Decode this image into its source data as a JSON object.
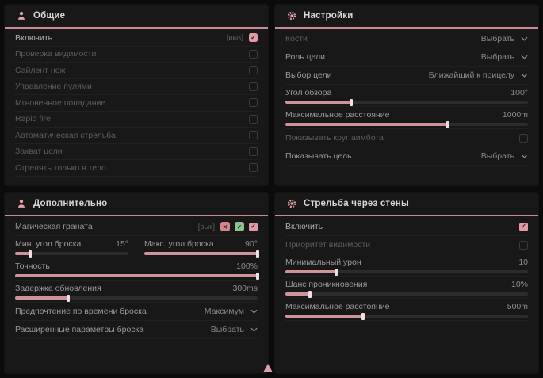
{
  "colors": {
    "accent_underline": "#c98a93",
    "checkbox_on": "#e29aa4",
    "slider_fill": "#cf939b",
    "header_icon": "#e8a2ab",
    "badge_red": "#d9838c",
    "badge_green": "#8fc08f",
    "panel_bg": "#181818",
    "page_bg": "#0b0b0b"
  },
  "panels": [
    {
      "title": "Общие",
      "icon": "person-icon",
      "rows": [
        {
          "type": "toggle",
          "label": "Включить",
          "hotkey": "[вык]",
          "checked": true
        },
        {
          "type": "toggle",
          "label": "Проверка видимости",
          "checked": false
        },
        {
          "type": "toggle",
          "label": "Сайлент нож",
          "checked": false
        },
        {
          "type": "toggle",
          "label": "Управление пулями",
          "checked": false
        },
        {
          "type": "toggle",
          "label": "Мгновенное попадание",
          "checked": false
        },
        {
          "type": "toggle",
          "label": "Rapid fire",
          "checked": false
        },
        {
          "type": "toggle",
          "label": "Автоматическая стрельба",
          "checked": false
        },
        {
          "type": "toggle",
          "label": "Захват цели",
          "checked": false
        },
        {
          "type": "toggle",
          "label": "Стрелять только в тело",
          "checked": false
        }
      ]
    },
    {
      "title": "Настройки",
      "icon": "gear-icon",
      "rows": [
        {
          "type": "select",
          "label": "Кости",
          "value": "Выбрать"
        },
        {
          "type": "select",
          "label": "Роль цели",
          "value": "Выбрать"
        },
        {
          "type": "select",
          "label": "Выбор цели",
          "value": "Ближайший к прицелу"
        },
        {
          "type": "slider",
          "label": "Угол обзора",
          "value": "100°",
          "pct": 27
        },
        {
          "type": "slider",
          "label": "Максимальное расстояние",
          "value": "1000m",
          "pct": 67
        },
        {
          "type": "toggle",
          "label": "Показывать круг аимбота",
          "checked": false
        },
        {
          "type": "select",
          "label": "Показывать цель",
          "value": "Выбрать"
        }
      ]
    },
    {
      "title": "Дополнительно",
      "icon": "person-icon",
      "rows": [
        {
          "type": "toggle",
          "label": "Магическая граната",
          "hotkey": "[вык]",
          "checked": true,
          "badges": [
            {
              "name": "red-badge",
              "glyph": "✕"
            },
            {
              "name": "green-badge",
              "glyph": "✓"
            }
          ]
        },
        {
          "type": "dual-slider",
          "left": {
            "label": "Мин. угол броска",
            "value": "15°",
            "pct": 13
          },
          "right": {
            "label": "Макс. угол броска",
            "value": "90°",
            "pct": 100
          }
        },
        {
          "type": "slider",
          "label": "Точность",
          "value": "100%",
          "pct": 100
        },
        {
          "type": "slider",
          "label": "Задержка обновления",
          "value": "300ms",
          "pct": 22
        },
        {
          "type": "select",
          "label": "Предпочтение по времени броска",
          "value": "Максимум"
        },
        {
          "type": "select",
          "label": "Расширенные параметры броска",
          "value": "Выбрать"
        }
      ]
    },
    {
      "title": "Стрельба через стены",
      "icon": "gear-icon",
      "rows": [
        {
          "type": "toggle",
          "label": "Включить",
          "checked": true
        },
        {
          "type": "toggle",
          "label": "Приоритет видимости",
          "checked": false
        },
        {
          "type": "slider",
          "label": "Минимальный урон",
          "value": "10",
          "pct": 21
        },
        {
          "type": "slider",
          "label": "Шанс проникновения",
          "value": "10%",
          "pct": 10
        },
        {
          "type": "slider",
          "label": "Максимальное расстояние",
          "value": "500m",
          "pct": 32
        }
      ]
    }
  ]
}
